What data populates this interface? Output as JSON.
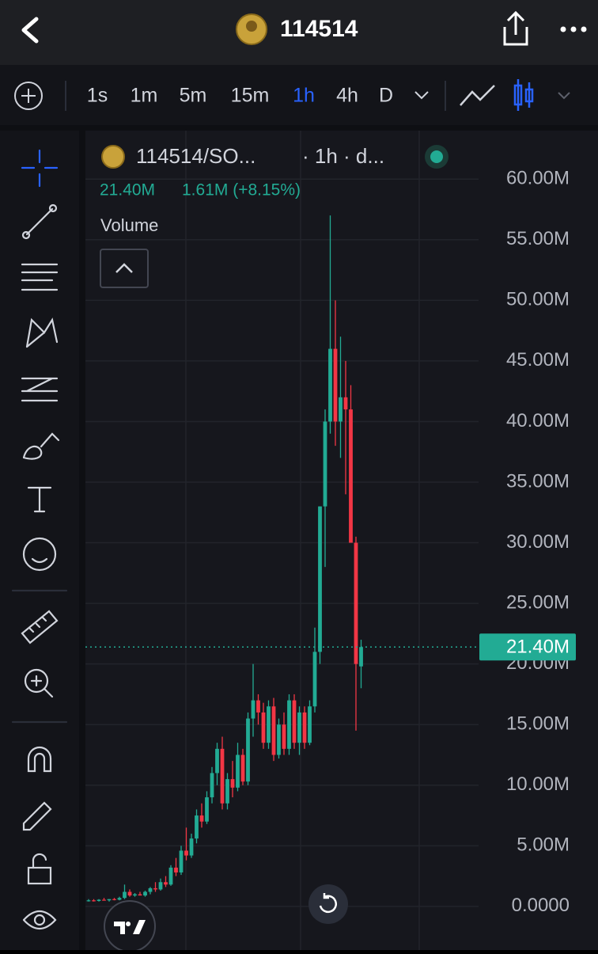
{
  "header": {
    "title": "114514"
  },
  "toolbar": {
    "intervals": [
      "1s",
      "1m",
      "5m",
      "15m",
      "1h",
      "4h",
      "D"
    ],
    "active_interval": 4
  },
  "chart_data": {
    "type": "candlestick",
    "legend": {
      "symbol": "114514/SO...",
      "interval": "· 1h · d...",
      "price": "21.40M",
      "change": "1.61M (+8.15%)",
      "indicator": "Volume"
    },
    "up_color": "#22ab94",
    "down_color": "#f23645",
    "ylim": [
      -3.6,
      64
    ],
    "yticks": [
      {
        "value": 0,
        "label": "0.0000"
      },
      {
        "value": 5,
        "label": "5.00M"
      },
      {
        "value": 10,
        "label": "10.00M"
      },
      {
        "value": 15,
        "label": "15.00M"
      },
      {
        "value": 20,
        "label": "20.00M"
      },
      {
        "value": 25,
        "label": "25.00M"
      },
      {
        "value": 30,
        "label": "30.00M"
      },
      {
        "value": 35,
        "label": "35.00M"
      },
      {
        "value": 40,
        "label": "40.00M"
      },
      {
        "value": 45,
        "label": "45.00M"
      },
      {
        "value": 50,
        "label": "50.00M"
      },
      {
        "value": 55,
        "label": "55.00M"
      },
      {
        "value": 60,
        "label": "60.00M"
      }
    ],
    "grid": true,
    "last_price": 21.4,
    "last_price_label": "21.40M",
    "open": [
      0.5,
      0.5,
      0.45,
      0.55,
      0.5,
      0.6,
      0.55,
      0.7,
      1.2,
      0.9,
      1.0,
      0.9,
      1.2,
      1.5,
      1.4,
      2.0,
      1.8,
      3.2,
      2.8,
      4.6,
      4.2,
      5.6,
      7.5,
      7.0,
      9.0,
      11.0,
      13.0,
      8.5,
      10.5,
      9.8,
      12.5,
      10.3,
      15.5,
      17.0,
      16.0,
      13.5,
      16.5,
      12.5,
      15.0,
      13.0,
      17.0,
      13.5,
      16.0,
      13.5,
      16.5,
      21.0,
      33.0,
      40.0,
      46.0,
      40.0,
      42.0,
      41.0,
      30.0,
      19.8
    ],
    "high": [
      0.6,
      0.6,
      0.6,
      0.7,
      0.6,
      0.7,
      0.8,
      1.8,
      1.4,
      1.1,
      1.2,
      1.3,
      1.6,
      2.0,
      2.3,
      2.5,
      3.4,
      4.0,
      5.0,
      6.5,
      6.0,
      8.0,
      8.5,
      9.5,
      11.5,
      13.5,
      14.0,
      11.0,
      12.0,
      13.5,
      13.0,
      16.0,
      20.0,
      17.5,
      16.8,
      17.0,
      17.2,
      15.5,
      16.0,
      17.5,
      17.5,
      16.5,
      16.5,
      17.0,
      23.0,
      33.0,
      41.0,
      57.0,
      50.0,
      47.0,
      45.0,
      43.0,
      30.5,
      22.0
    ],
    "low": [
      0.4,
      0.4,
      0.4,
      0.5,
      0.4,
      0.5,
      0.5,
      0.6,
      0.8,
      0.8,
      0.9,
      0.8,
      1.0,
      1.2,
      1.3,
      1.6,
      1.7,
      2.5,
      2.6,
      3.8,
      4.0,
      5.2,
      6.5,
      6.8,
      8.5,
      10.0,
      8.0,
      8.0,
      9.0,
      9.5,
      10.0,
      10.0,
      14.0,
      15.0,
      13.0,
      13.0,
      12.0,
      12.2,
      12.5,
      12.5,
      13.0,
      12.5,
      13.0,
      13.3,
      16.0,
      20.0,
      28.0,
      39.0,
      38.0,
      37.0,
      34.0,
      30.0,
      14.5,
      18.0
    ],
    "close": [
      0.5,
      0.45,
      0.55,
      0.5,
      0.6,
      0.55,
      0.7,
      1.2,
      0.9,
      1.0,
      0.9,
      1.2,
      1.5,
      1.4,
      2.0,
      1.8,
      3.2,
      2.8,
      4.6,
      4.2,
      5.6,
      7.5,
      7.0,
      9.0,
      11.0,
      13.0,
      8.5,
      10.5,
      9.8,
      12.5,
      10.3,
      15.5,
      17.0,
      16.0,
      13.5,
      16.5,
      12.5,
      15.0,
      13.0,
      17.0,
      13.5,
      16.0,
      13.5,
      16.5,
      21.0,
      33.0,
      40.0,
      46.0,
      40.0,
      42.0,
      41.0,
      30.0,
      20.0,
      21.4
    ]
  }
}
